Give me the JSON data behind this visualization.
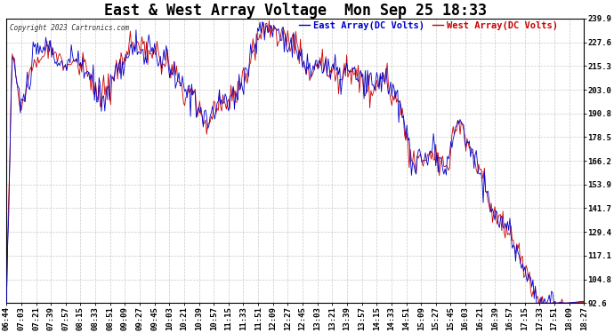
{
  "title": "East & West Array Voltage  Mon Sep 25 18:33",
  "legend_east": "East Array(DC Volts)",
  "legend_west": "West Array(DC Volts)",
  "copyright": "Copyright 2023 Cartronics.com",
  "ylim": [
    92.6,
    239.9
  ],
  "yticks": [
    92.6,
    104.8,
    117.1,
    129.4,
    141.7,
    153.9,
    166.2,
    178.5,
    190.8,
    203.0,
    215.3,
    227.6,
    239.9
  ],
  "bg_color": "#ffffff",
  "plot_bg": "#ffffff",
  "grid_color": "#bbbbbb",
  "east_color": "#0000cc",
  "west_color": "#cc0000",
  "title_fontsize": 12,
  "tick_fontsize": 6.5,
  "legend_fontsize": 7.5,
  "x_tick_labels": [
    "06:44",
    "07:03",
    "07:21",
    "07:39",
    "07:57",
    "08:15",
    "08:33",
    "08:51",
    "09:09",
    "09:27",
    "09:45",
    "10:03",
    "10:21",
    "10:39",
    "10:57",
    "11:15",
    "11:33",
    "11:51",
    "12:09",
    "12:27",
    "12:45",
    "13:03",
    "13:21",
    "13:39",
    "13:57",
    "14:15",
    "14:33",
    "14:51",
    "15:09",
    "15:27",
    "15:45",
    "16:03",
    "16:21",
    "16:39",
    "16:57",
    "17:15",
    "17:33",
    "17:51",
    "18:09",
    "18:27"
  ],
  "n_points": 500
}
